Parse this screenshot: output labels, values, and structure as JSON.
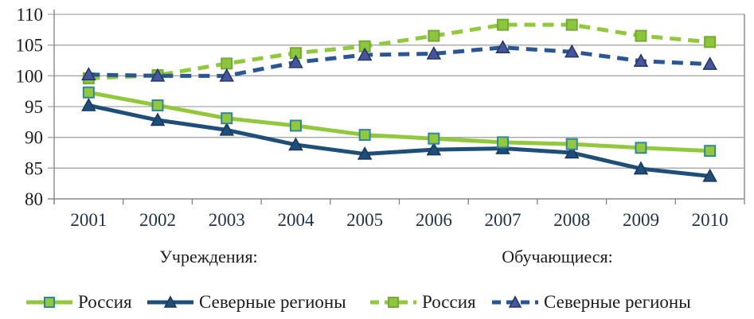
{
  "chart_data": {
    "type": "line",
    "title": "",
    "xlabel": "",
    "ylabel": "",
    "categories": [
      "2001",
      "2002",
      "2003",
      "2004",
      "2005",
      "2006",
      "2007",
      "2008",
      "2009",
      "2010"
    ],
    "ylim": [
      80,
      110
    ],
    "ytick_step": 5,
    "yticks": [
      "80",
      "85",
      "90",
      "95",
      "100",
      "105",
      "110"
    ],
    "grid": "horizontal",
    "legend_position": "bottom",
    "group_labels": [
      "Учреждения:",
      "Обучающиеся:"
    ],
    "series": [
      {
        "group": "Учреждения",
        "name": "Россия",
        "line_style": "solid",
        "color": "#92C83E",
        "marker": "square",
        "marker_fill": "#92C83E",
        "marker_border": "#31859C",
        "values": [
          97.3,
          95.2,
          93.1,
          91.9,
          90.4,
          89.8,
          89.2,
          88.9,
          88.3,
          87.8
        ]
      },
      {
        "group": "Учреждения",
        "name": "Северные регионы",
        "line_style": "solid",
        "color": "#1F4E79",
        "marker": "triangle",
        "marker_fill": "#1F4E79",
        "marker_border": "#17375E",
        "values": [
          95.2,
          92.8,
          91.2,
          88.8,
          87.3,
          88.0,
          88.2,
          87.5,
          84.9,
          83.7
        ]
      },
      {
        "group": "Обучающиеся",
        "name": "Россия",
        "line_style": "dashed",
        "color": "#92C83E",
        "marker": "square",
        "marker_fill": "#8CC63F",
        "marker_border": "#76A832",
        "values": [
          99.6,
          100.1,
          102.0,
          103.7,
          104.8,
          106.5,
          108.3,
          108.3,
          106.5,
          105.5
        ]
      },
      {
        "group": "Обучающиеся",
        "name": "Северные регионы",
        "line_style": "dashed",
        "color": "#2A5793",
        "marker": "triangle",
        "marker_fill": "#4A549C",
        "marker_border": "#1F3864",
        "values": [
          100.2,
          100.0,
          100.0,
          102.2,
          103.4,
          103.6,
          104.6,
          103.9,
          102.4,
          101.9
        ]
      }
    ],
    "axis_colors": {
      "grid": "#A6A6A6",
      "axis": "#808080",
      "y_tick_label": "#1B1B1B",
      "x_tick_label": "#22334A"
    }
  }
}
